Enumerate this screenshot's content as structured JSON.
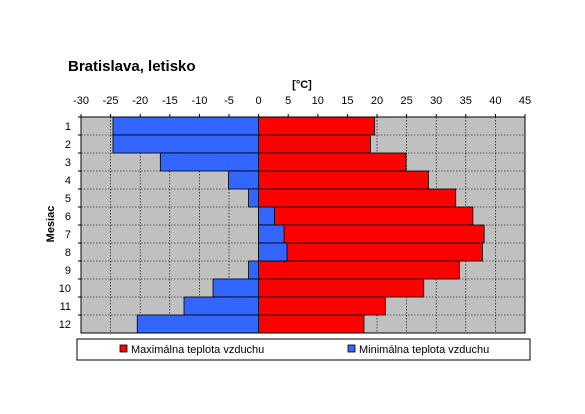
{
  "chart_data": {
    "type": "bar",
    "orientation": "horizontal",
    "title": "Bratislava, letisko",
    "xlabel": "[°C]",
    "ylabel": "Mesiac",
    "xlim": [
      -30,
      45
    ],
    "x_ticks": [
      -30,
      -25,
      -20,
      -15,
      -10,
      -5,
      0,
      5,
      10,
      15,
      20,
      25,
      30,
      35,
      40,
      45
    ],
    "categories": [
      "1",
      "2",
      "3",
      "4",
      "5",
      "6",
      "7",
      "8",
      "9",
      "10",
      "11",
      "12"
    ],
    "grid": true,
    "legend_position": "bottom",
    "series": [
      {
        "name": "Maximálna teplota vzduchu",
        "color": "#ff0000",
        "values": [
          19.6,
          18.9,
          24.9,
          28.7,
          33.3,
          36.2,
          38.1,
          37.8,
          33.9,
          27.9,
          21.4,
          17.8
        ]
      },
      {
        "name": "Minimálna teplota vzduchu",
        "color": "#3366ff",
        "values": [
          -24.6,
          -24.6,
          -16.6,
          -5.1,
          -1.7,
          2.7,
          4.3,
          4.8,
          -1.7,
          -7.7,
          -12.6,
          -20.5
        ]
      }
    ],
    "plot_background": "#c0c0c0"
  }
}
